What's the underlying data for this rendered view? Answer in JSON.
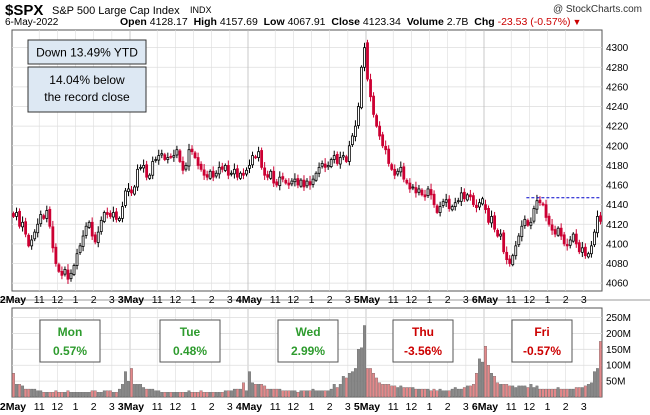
{
  "header": {
    "ticker": "$SPX",
    "name": "S&P 500 Large Cap Index",
    "exchange": "INDX",
    "watermark": "@ StockCharts.com",
    "date": "6-May-2022",
    "open_label": "Open",
    "open": "4128.17",
    "high_label": "High",
    "high": "4157.69",
    "low_label": "Low",
    "low": "4067.91",
    "close_label": "Close",
    "close": "4123.34",
    "volume_label": "Volume",
    "volume": "2.7B",
    "chg_label": "Chg",
    "chg": "-23.53 (-0.57%)",
    "chg_direction": "down"
  },
  "annotations": {
    "ytd": "Down 13.49% YTD",
    "record_line1": "14.04% below",
    "record_line2": "the record close"
  },
  "days": [
    {
      "day": "Mon",
      "value": "0.57%",
      "direction": "up"
    },
    {
      "day": "Tue",
      "value": "0.48%",
      "direction": "up"
    },
    {
      "day": "Wed",
      "value": "2.99%",
      "direction": "up"
    },
    {
      "day": "Thu",
      "value": "-3.56%",
      "direction": "down"
    },
    {
      "day": "Fri",
      "value": "-0.57%",
      "direction": "down"
    }
  ],
  "colors": {
    "up": "#000000",
    "down": "#cc0033",
    "up_hollow": "#ffffff",
    "up_text": "#2e9b2e",
    "down_text": "#cc0000",
    "box_fill": "#dde8f3",
    "grid": "#dddddd",
    "vol_up": "#888888",
    "vol_down": "#e4888a",
    "dashed_line": "#0000cc"
  },
  "chart_data": {
    "type": "candlestick",
    "interval": "10-minute",
    "x_tick_labels": [
      "2May",
      "11",
      "12",
      "1",
      "2",
      "3",
      "3May",
      "11",
      "12",
      "1",
      "2",
      "3",
      "4May",
      "11",
      "12",
      "1",
      "2",
      "3",
      "5May",
      "11",
      "12",
      "1",
      "2",
      "3",
      "6May",
      "11",
      "12",
      "1",
      "2",
      "3"
    ],
    "price_ylim": [
      4052,
      4318
    ],
    "price_ticks": [
      4060,
      4080,
      4100,
      4120,
      4140,
      4160,
      4180,
      4200,
      4220,
      4240,
      4260,
      4280,
      4300
    ],
    "reference_line": {
      "value": 4147,
      "style": "dashed"
    },
    "volume_ylim": [
      0,
      280000000
    ],
    "volume_ticks": [
      {
        "label": "50M",
        "value": 50000000
      },
      {
        "label": "100M",
        "value": 100000000
      },
      {
        "label": "150M",
        "value": 150000000
      },
      {
        "label": "200M",
        "value": 200000000
      },
      {
        "label": "250M",
        "value": 250000000
      }
    ],
    "closes": [
      [
        4128,
        4132,
        4118,
        4122,
        4110,
        4098,
        4104,
        4112,
        4120,
        4130,
        4126,
        4134,
        4118,
        4096,
        4080,
        4072,
        4068,
        4074,
        4064,
        4070,
        4078,
        4090,
        4098,
        4108,
        4118,
        4122,
        4108,
        4102,
        4112,
        4124,
        4132,
        4130,
        4128,
        4132,
        4125,
        4126,
        4138,
        4154,
        4156
      ],
      [
        4152,
        4158,
        4176,
        4178,
        4180,
        4168,
        4170,
        4184,
        4186,
        4190,
        4192,
        4186,
        4188,
        4189,
        4190,
        4196,
        4184,
        4175,
        4180,
        4196,
        4194,
        4188,
        4180,
        4176,
        4170,
        4168,
        4174,
        4168,
        4172,
        4178,
        4176,
        4180,
        4170,
        4172,
        4176,
        4168,
        4172,
        4170,
        4175
      ],
      [
        4180,
        4190,
        4188,
        4194,
        4178,
        4170,
        4168,
        4174,
        4162,
        4160,
        4168,
        4166,
        4162,
        4160,
        4164,
        4166,
        4160,
        4165,
        4158,
        4164,
        4160,
        4166,
        4172,
        4178,
        4182,
        4178,
        4180,
        4186,
        4190,
        4182,
        4188,
        4190,
        4184,
        4200,
        4210,
        4220,
        4240,
        4280,
        4300
      ],
      [
        4268,
        4250,
        4232,
        4220,
        4210,
        4200,
        4196,
        4182,
        4176,
        4170,
        4174,
        4178,
        4166,
        4162,
        4156,
        4158,
        4152,
        4156,
        4150,
        4148,
        4156,
        4150,
        4140,
        4132,
        4138,
        4143,
        4145,
        4136,
        4138,
        4142,
        4144,
        4152,
        4146,
        4150,
        4148,
        4140,
        4137,
        4142,
        4146
      ],
      [
        4135,
        4122,
        4128,
        4115,
        4108,
        4110,
        4092,
        4084,
        4080,
        4088,
        4098,
        4108,
        4118,
        4125,
        4119,
        4122,
        4136,
        4144,
        4142,
        4140,
        4127,
        4120,
        4114,
        4110,
        4116,
        4108,
        4100,
        4098,
        4104,
        4110,
        4100,
        4092,
        4096,
        4088,
        4090,
        4098,
        4112,
        4128,
        4123
      ]
    ],
    "opens_day_start": [
      4131,
      4155,
      4177,
      4305,
      4140
    ],
    "volumes_millions": [
      [
        75,
        40,
        40,
        35,
        25,
        25,
        25,
        25,
        20,
        20,
        15,
        15,
        15,
        15,
        20,
        15,
        15,
        15,
        20,
        15,
        15,
        15,
        15,
        15,
        15,
        15,
        20,
        20,
        15,
        15,
        20,
        20,
        20,
        15,
        15,
        25,
        40,
        80,
        50
      ],
      [
        90,
        40,
        40,
        40,
        30,
        25,
        25,
        25,
        20,
        20,
        15,
        15,
        15,
        15,
        15,
        15,
        15,
        15,
        15,
        20,
        15,
        15,
        15,
        20,
        15,
        15,
        15,
        15,
        15,
        15,
        15,
        20,
        20,
        20,
        25,
        25,
        25,
        45,
        20
      ],
      [
        80,
        45,
        40,
        40,
        40,
        35,
        25,
        25,
        25,
        25,
        25,
        20,
        20,
        20,
        20,
        20,
        15,
        20,
        20,
        20,
        20,
        25,
        20,
        20,
        20,
        20,
        20,
        25,
        40,
        30,
        40,
        65,
        60,
        75,
        80,
        90,
        150,
        155,
        225
      ],
      [
        90,
        90,
        75,
        60,
        45,
        40,
        40,
        40,
        35,
        35,
        30,
        35,
        30,
        30,
        30,
        30,
        25,
        25,
        25,
        25,
        25,
        20,
        25,
        20,
        25,
        20,
        20,
        20,
        25,
        30,
        25,
        25,
        30,
        35,
        35,
        40,
        75,
        120,
        110
      ],
      [
        160,
        100,
        75,
        65,
        45,
        40,
        40,
        40,
        35,
        35,
        30,
        35,
        35,
        35,
        30,
        40,
        30,
        35,
        25,
        25,
        25,
        25,
        25,
        25,
        30,
        25,
        25,
        25,
        25,
        25,
        30,
        30,
        30,
        35,
        40,
        45,
        80,
        90,
        175
      ]
    ]
  }
}
